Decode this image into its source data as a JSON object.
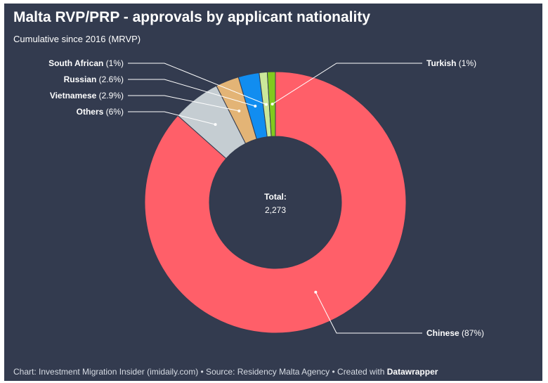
{
  "header": {
    "title": "Malta RVP/PRP - approvals by applicant nationality",
    "subtitle": "Cumulative since 2016 (MRVP)"
  },
  "chart_data": {
    "type": "pie",
    "variant": "donut",
    "title": "Malta RVP/PRP - approvals by applicant nationality",
    "subtitle": "Cumulative since 2016 (MRVP)",
    "center_label": "Total:",
    "center_value": "2,273",
    "slices": [
      {
        "name": "Chinese",
        "label": "Chinese",
        "pct_text": "(87%)",
        "value": 87,
        "color": "#ff5f69"
      },
      {
        "name": "Others",
        "label": "Others",
        "pct_text": "(6%)",
        "value": 6,
        "color": "#c5cdd2"
      },
      {
        "name": "Vietnamese",
        "label": "Vietnamese",
        "pct_text": "(2.9%)",
        "value": 2.9,
        "color": "#e3b476"
      },
      {
        "name": "Russian",
        "label": "Russian",
        "pct_text": "(2.6%)",
        "value": 2.6,
        "color": "#118df0"
      },
      {
        "name": "South African",
        "label": "South African",
        "pct_text": "(1%)",
        "value": 1,
        "color": "#cbe89a"
      },
      {
        "name": "Turkish",
        "label": "Turkish",
        "pct_text": "(1%)",
        "value": 1,
        "color": "#82c91e"
      }
    ]
  },
  "footer": {
    "text": "Chart: Investment Migration Insider (imidaily.com) • Source: Residency Malta Agency • Created with ",
    "brand": "Datawrapper"
  }
}
